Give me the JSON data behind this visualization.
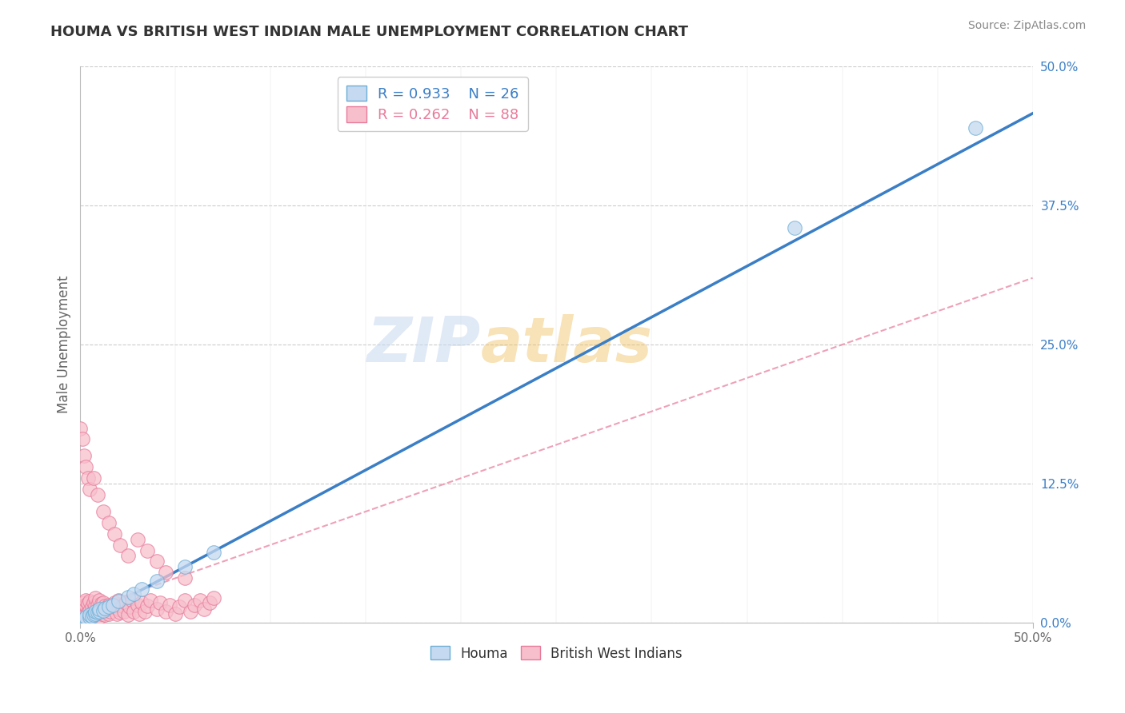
{
  "title": "HOUMA VS BRITISH WEST INDIAN MALE UNEMPLOYMENT CORRELATION CHART",
  "source_text": "Source: ZipAtlas.com",
  "ylabel": "Male Unemployment",
  "xlim": [
    0.0,
    0.5
  ],
  "ylim": [
    0.0,
    0.5
  ],
  "xtick_labels": [
    "0.0%",
    "50.0%"
  ],
  "ytick_labels": [
    "50.0%",
    "37.5%",
    "25.0%",
    "12.5%",
    "0.0%"
  ],
  "ytick_positions": [
    0.5,
    0.375,
    0.25,
    0.125,
    0.0
  ],
  "grid_color": "#cccccc",
  "background_color": "#ffffff",
  "houma_color": "#c5d9f0",
  "bwi_color": "#f7bfcc",
  "houma_edge_color": "#6baed6",
  "bwi_edge_color": "#e87a9a",
  "houma_line_color": "#3a7ec6",
  "bwi_line_color": "#e87a9a",
  "R_houma": 0.933,
  "N_houma": 26,
  "R_bwi": 0.262,
  "N_bwi": 88,
  "houma_line_text_color": "#3a7ec6",
  "bwi_line_text_color": "#e87a9a",
  "watermark_text": "ZIPatlas",
  "watermark_color_zip": "#c8d8f0",
  "watermark_color_atlas": "#f0c060",
  "houma_x": [
    0.001,
    0.002,
    0.003,
    0.003,
    0.005,
    0.005,
    0.006,
    0.007,
    0.008,
    0.008,
    0.009,
    0.01,
    0.01,
    0.012,
    0.013,
    0.015,
    0.017,
    0.02,
    0.025,
    0.028,
    0.032,
    0.04,
    0.055,
    0.07,
    0.375,
    0.47
  ],
  "houma_y": [
    0.002,
    0.003,
    0.004,
    0.005,
    0.005,
    0.007,
    0.006,
    0.007,
    0.008,
    0.01,
    0.009,
    0.01,
    0.012,
    0.011,
    0.013,
    0.014,
    0.016,
    0.019,
    0.023,
    0.026,
    0.03,
    0.037,
    0.05,
    0.063,
    0.355,
    0.445
  ],
  "bwi_x": [
    0.0,
    0.0,
    0.001,
    0.001,
    0.001,
    0.002,
    0.002,
    0.002,
    0.003,
    0.003,
    0.003,
    0.004,
    0.004,
    0.005,
    0.005,
    0.005,
    0.006,
    0.006,
    0.007,
    0.007,
    0.008,
    0.008,
    0.008,
    0.009,
    0.009,
    0.01,
    0.01,
    0.01,
    0.011,
    0.011,
    0.012,
    0.012,
    0.013,
    0.013,
    0.014,
    0.015,
    0.015,
    0.016,
    0.017,
    0.018,
    0.019,
    0.02,
    0.02,
    0.021,
    0.022,
    0.023,
    0.024,
    0.025,
    0.026,
    0.027,
    0.028,
    0.03,
    0.031,
    0.032,
    0.034,
    0.035,
    0.037,
    0.04,
    0.042,
    0.045,
    0.047,
    0.05,
    0.052,
    0.055,
    0.058,
    0.06,
    0.063,
    0.065,
    0.068,
    0.07,
    0.0,
    0.001,
    0.002,
    0.003,
    0.004,
    0.005,
    0.007,
    0.009,
    0.012,
    0.015,
    0.018,
    0.021,
    0.025,
    0.03,
    0.035,
    0.04,
    0.045,
    0.055
  ],
  "bwi_y": [
    0.005,
    0.01,
    0.008,
    0.012,
    0.015,
    0.006,
    0.013,
    0.018,
    0.007,
    0.016,
    0.02,
    0.009,
    0.017,
    0.005,
    0.011,
    0.019,
    0.008,
    0.014,
    0.01,
    0.018,
    0.007,
    0.015,
    0.022,
    0.01,
    0.016,
    0.005,
    0.012,
    0.02,
    0.008,
    0.017,
    0.01,
    0.018,
    0.007,
    0.015,
    0.012,
    0.008,
    0.016,
    0.01,
    0.014,
    0.018,
    0.008,
    0.012,
    0.02,
    0.009,
    0.015,
    0.01,
    0.018,
    0.007,
    0.014,
    0.02,
    0.01,
    0.016,
    0.008,
    0.018,
    0.01,
    0.015,
    0.02,
    0.012,
    0.018,
    0.01,
    0.016,
    0.008,
    0.014,
    0.02,
    0.01,
    0.016,
    0.02,
    0.012,
    0.018,
    0.022,
    0.175,
    0.165,
    0.15,
    0.14,
    0.13,
    0.12,
    0.13,
    0.115,
    0.1,
    0.09,
    0.08,
    0.07,
    0.06,
    0.075,
    0.065,
    0.055,
    0.045,
    0.04
  ],
  "houma_line_x": [
    0.0,
    0.5
  ],
  "houma_line_y": [
    0.0,
    0.458
  ],
  "bwi_line_x": [
    0.0,
    0.5
  ],
  "bwi_line_y": [
    0.01,
    0.31
  ]
}
